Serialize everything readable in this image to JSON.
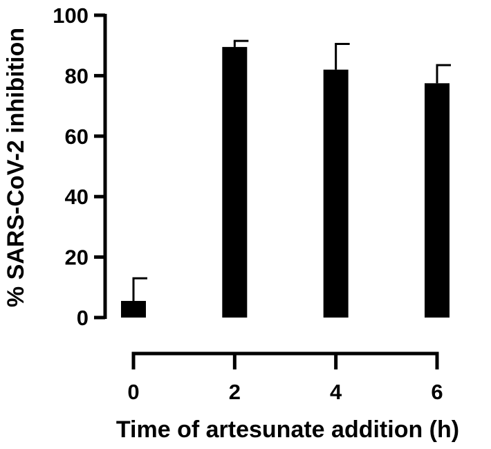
{
  "chart_data": {
    "type": "bar",
    "title": "",
    "xlabel": "Time of artesunate addition (h)",
    "ylabel": "% SARS-CoV-2 inhibition",
    "categories": [
      "0",
      "2",
      "4",
      "6"
    ],
    "values": [
      5.5,
      89.5,
      82.0,
      77.5
    ],
    "error_upper": [
      7.5,
      2.0,
      8.5,
      6.0
    ],
    "ylim": [
      0,
      100
    ],
    "yticks": [
      0,
      20,
      40,
      60,
      80,
      100
    ],
    "grid": false,
    "legend": "none",
    "bar_color": "#000000"
  }
}
